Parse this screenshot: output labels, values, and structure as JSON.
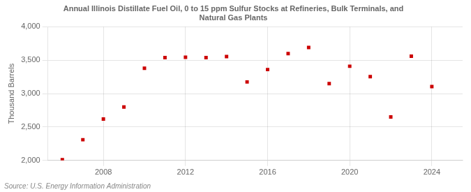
{
  "chart_data": {
    "type": "scatter",
    "title": "Annual Illinois Distillate Fuel Oil, 0 to 15 ppm Sulfur Stocks at Refineries, Bulk Terminals, and\nNatural Gas Plants",
    "ylabel": "Thousand Barrels",
    "annotation": "Source: U.S. Energy Information Administration",
    "x": [
      2006,
      2007,
      2008,
      2009,
      2010,
      2011,
      2012,
      2013,
      2014,
      2015,
      2016,
      2017,
      2018,
      2019,
      2020,
      2021,
      2022,
      2023,
      2024
    ],
    "values": [
      2010,
      2310,
      2620,
      2800,
      3380,
      3540,
      3545,
      3540,
      3555,
      3175,
      3360,
      3600,
      3690,
      3150,
      3410,
      3255,
      2650,
      3560,
      3105
    ],
    "color": "#cc0000",
    "marker": "square",
    "xlim": [
      2005.3,
      2025.5
    ],
    "xticks": [
      2008,
      2012,
      2016,
      2020,
      2024
    ],
    "ylim": [
      2000,
      4000
    ],
    "yticks": [
      {
        "value": 2000,
        "label": "2,000"
      },
      {
        "value": 2500,
        "label": "2,500"
      },
      {
        "value": 3000,
        "label": "3,000"
      },
      {
        "value": 3500,
        "label": "3,500"
      },
      {
        "value": 4000,
        "label": "4,000"
      }
    ],
    "grid": true
  }
}
